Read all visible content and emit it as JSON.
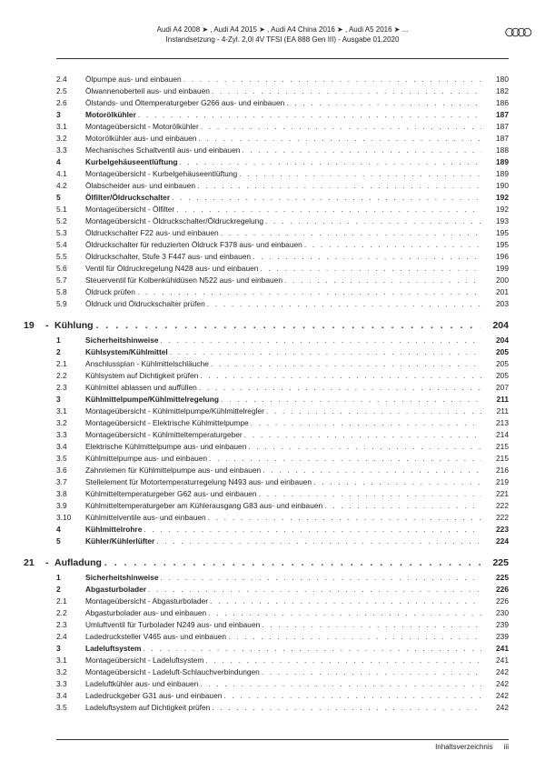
{
  "header": {
    "line1": "Audi A4 2008 ➤ , Audi A4 2015 ➤ , Audi A4 China 2016 ➤ , Audi A5 2016 ➤ ...",
    "line2": "Instandsetzung - 4-Zyl. 2,0l 4V TFSI (EA 888 Gen III) - Ausgabe 01.2020"
  },
  "sections": [
    {
      "type": "item",
      "num": "2.4",
      "label": "Ölpumpe aus- und einbauen",
      "page": "180"
    },
    {
      "type": "item",
      "num": "2.5",
      "label": "Ölwannenoberteil aus- und einbauen",
      "page": "182"
    },
    {
      "type": "item",
      "num": "2.6",
      "label": "Ölstands- und Öltemperaturgeber G266 aus- und einbauen",
      "page": "186"
    },
    {
      "type": "item",
      "num": "3",
      "label": "Motorölkühler",
      "page": "187",
      "bold": true
    },
    {
      "type": "item",
      "num": "3.1",
      "label": "Montageübersicht - Motorölkühler",
      "page": "187"
    },
    {
      "type": "item",
      "num": "3.2",
      "label": "Motorölkühler aus- und einbauen",
      "page": "187"
    },
    {
      "type": "item",
      "num": "3.3",
      "label": "Mechanisches Schaltventil aus- und einbauen",
      "page": "188"
    },
    {
      "type": "item",
      "num": "4",
      "label": "Kurbelgehäuseentlüftung",
      "page": "189",
      "bold": true
    },
    {
      "type": "item",
      "num": "4.1",
      "label": "Montageübersicht - Kurbelgehäuseentlüftung",
      "page": "189"
    },
    {
      "type": "item",
      "num": "4.2",
      "label": "Ölabscheider aus- und einbauen",
      "page": "190"
    },
    {
      "type": "item",
      "num": "5",
      "label": "Ölfilter/Öldruckschalter",
      "page": "192",
      "bold": true
    },
    {
      "type": "item",
      "num": "5.1",
      "label": "Montageübersicht - Ölfilter",
      "page": "192"
    },
    {
      "type": "item",
      "num": "5.2",
      "label": "Montageübersicht - Öldruckschalter/Öldruckregelung",
      "page": "193"
    },
    {
      "type": "item",
      "num": "5.3",
      "label": "Öldruckschalter F22 aus- und einbauen",
      "page": "195"
    },
    {
      "type": "item",
      "num": "5.4",
      "label": "Öldruckschalter für reduzierten Öldruck F378 aus- und einbauen",
      "page": "195"
    },
    {
      "type": "item",
      "num": "5.5",
      "label": "Öldruckschalter, Stufe 3 F447 aus- und einbauen",
      "page": "196"
    },
    {
      "type": "item",
      "num": "5.6",
      "label": "Ventil für Öldruckregelung N428 aus- und einbauen",
      "page": "199"
    },
    {
      "type": "item",
      "num": "5.7",
      "label": "Steuerventil für Kolbenkühldüsen N522 aus- und einbauen",
      "page": "200"
    },
    {
      "type": "item",
      "num": "5.8",
      "label": "Öldruck prüfen",
      "page": "201"
    },
    {
      "type": "item",
      "num": "5.9",
      "label": "Öldruck und Öldruckschalter prüfen",
      "page": "203"
    },
    {
      "type": "chapter",
      "num": "19",
      "label": "Kühlung",
      "page": "204"
    },
    {
      "type": "item",
      "num": "1",
      "label": "Sicherheitshinweise",
      "page": "204",
      "bold": true
    },
    {
      "type": "item",
      "num": "2",
      "label": "Kühlsystem/Kühlmittel",
      "page": "205",
      "bold": true
    },
    {
      "type": "item",
      "num": "2.1",
      "label": "Anschlussplan - Kühlmittelschläuche",
      "page": "205"
    },
    {
      "type": "item",
      "num": "2.2",
      "label": "Kühlsystem auf Dichtigkeit prüfen",
      "page": "205"
    },
    {
      "type": "item",
      "num": "2.3",
      "label": "Kühlmittel ablassen und auffüllen",
      "page": "207"
    },
    {
      "type": "item",
      "num": "3",
      "label": "Kühlmittelpumpe/Kühlmittelregelung",
      "page": "211",
      "bold": true
    },
    {
      "type": "item",
      "num": "3.1",
      "label": "Montageübersicht - Kühlmittelpumpe/Kühlmittelregler",
      "page": "211"
    },
    {
      "type": "item",
      "num": "3.2",
      "label": "Montageübersicht - Elektrische Kühlmittelpumpe",
      "page": "213"
    },
    {
      "type": "item",
      "num": "3.3",
      "label": "Montageübersicht - Kühlmitteltemperaturgeber",
      "page": "214"
    },
    {
      "type": "item",
      "num": "3.4",
      "label": "Elektrische Kühlmittelpumpe aus- und einbauen",
      "page": "215"
    },
    {
      "type": "item",
      "num": "3.5",
      "label": "Kühlmittelpumpe aus- und einbauen",
      "page": "215"
    },
    {
      "type": "item",
      "num": "3.6",
      "label": "Zahnriemen für Kühlmittelpumpe aus- und einbauen",
      "page": "216"
    },
    {
      "type": "item",
      "num": "3.7",
      "label": "Stellelement für Motortemperaturregelung N493 aus- und einbauen",
      "page": "219"
    },
    {
      "type": "item",
      "num": "3.8",
      "label": "Kühlmitteltemperaturgeber G62 aus- und einbauen",
      "page": "221"
    },
    {
      "type": "item",
      "num": "3.9",
      "label": "Kühlmitteltemperaturgeber am Kühlerausgang G83 aus- und einbauen",
      "page": "222"
    },
    {
      "type": "item",
      "num": "3.10",
      "label": "Kühlmittelventile aus- und einbauen",
      "page": "222"
    },
    {
      "type": "item",
      "num": "4",
      "label": "Kühlmittelrohre",
      "page": "223",
      "bold": true
    },
    {
      "type": "item",
      "num": "5",
      "label": "Kühler/Kühlerlüfter",
      "page": "224",
      "bold": true
    },
    {
      "type": "chapter",
      "num": "21",
      "label": "Aufladung",
      "page": "225"
    },
    {
      "type": "item",
      "num": "1",
      "label": "Sicherheitshinweise",
      "page": "225",
      "bold": true
    },
    {
      "type": "item",
      "num": "2",
      "label": "Abgasturbolader",
      "page": "226",
      "bold": true
    },
    {
      "type": "item",
      "num": "2.1",
      "label": "Montageübersicht - Abgasturbolader",
      "page": "226"
    },
    {
      "type": "item",
      "num": "2.2",
      "label": "Abgasturbolader aus- und einbauen",
      "page": "230"
    },
    {
      "type": "item",
      "num": "2.3",
      "label": "Umluftventil für Turbolader N249 aus- und einbauen",
      "page": "239"
    },
    {
      "type": "item",
      "num": "2.4",
      "label": "Ladedrucksteller V465 aus- und einbauen",
      "page": "239"
    },
    {
      "type": "item",
      "num": "3",
      "label": "Ladeluftsystem",
      "page": "241",
      "bold": true
    },
    {
      "type": "item",
      "num": "3.1",
      "label": "Montageübersicht - Ladeluftsystem",
      "page": "241"
    },
    {
      "type": "item",
      "num": "3.2",
      "label": "Montageübersicht - Ladeluft-Schlauchverbindungen",
      "page": "242"
    },
    {
      "type": "item",
      "num": "3.3",
      "label": "Ladeluftkühler aus- und einbauen",
      "page": "242"
    },
    {
      "type": "item",
      "num": "3.4",
      "label": "Ladedruckgeber G31 aus- und einbauen",
      "page": "242"
    },
    {
      "type": "item",
      "num": "3.5",
      "label": "Ladeluftsystem auf Dichtigkeit prüfen",
      "page": "242"
    }
  ],
  "footer": {
    "label": "Inhaltsverzeichnis",
    "page": "iii"
  }
}
